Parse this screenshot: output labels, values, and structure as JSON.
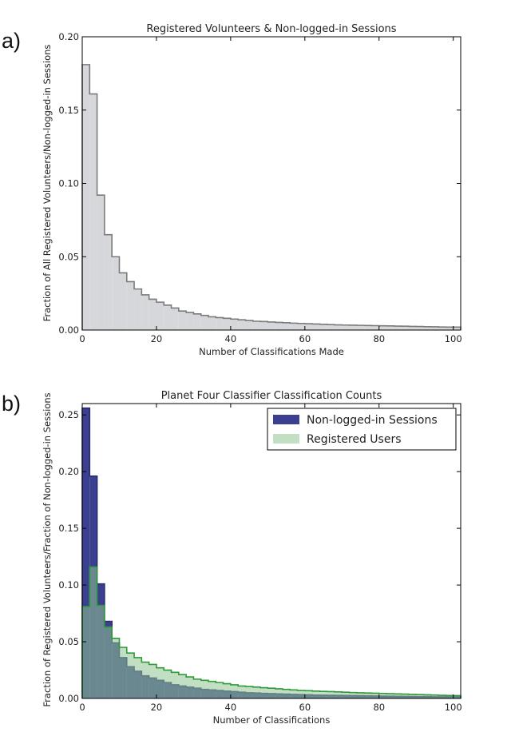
{
  "panels": {
    "a": {
      "letter": "a)"
    },
    "b": {
      "letter": "b)"
    }
  },
  "chart_data": [
    {
      "type": "histogram",
      "title": "Registered Volunteers & Non-logged-in Sessions",
      "xlabel": "Number of Classifications Made",
      "ylabel": "Fraction of All Registered Volunteers/Non-logged-in Sessions",
      "xlim": [
        0,
        102
      ],
      "ylim": [
        0,
        0.2
      ],
      "xticks": [
        0,
        20,
        40,
        60,
        80,
        100
      ],
      "xtick_labels": [
        "0",
        "20",
        "40",
        "60",
        "80",
        "100"
      ],
      "yticks": [
        0,
        0.05,
        0.1,
        0.15,
        0.2
      ],
      "ytick_labels": [
        "0.00",
        "0.05",
        "0.10",
        "0.15",
        "0.20"
      ],
      "bin_width": 2,
      "legend": "none",
      "grid": false,
      "series": [
        {
          "fill": "#d5d7da",
          "edge": "#7b7b7b",
          "values": [
            0.181,
            0.161,
            0.092,
            0.065,
            0.05,
            0.039,
            0.033,
            0.028,
            0.024,
            0.021,
            0.019,
            0.017,
            0.015,
            0.013,
            0.012,
            0.011,
            0.01,
            0.009,
            0.0085,
            0.008,
            0.0075,
            0.007,
            0.0065,
            0.006,
            0.0058,
            0.0055,
            0.0052,
            0.005,
            0.0047,
            0.0045,
            0.0043,
            0.0041,
            0.0039,
            0.0037,
            0.0035,
            0.0034,
            0.0033,
            0.0032,
            0.0031,
            0.003,
            0.0029,
            0.0028,
            0.0027,
            0.0026,
            0.0025,
            0.0024,
            0.0023,
            0.0022,
            0.0021,
            0.002,
            0.002
          ]
        }
      ]
    },
    {
      "type": "histogram",
      "title": "Planet Four Classifier Classification Counts",
      "xlabel": "Number of Classifications",
      "ylabel": "Fraction of Registered Volunteers/Fraction of Non-logged-in Sessions",
      "xlim": [
        0,
        102
      ],
      "ylim": [
        0,
        0.26
      ],
      "xticks": [
        0,
        20,
        40,
        60,
        80,
        100
      ],
      "xtick_labels": [
        "0",
        "20",
        "40",
        "60",
        "80",
        "100"
      ],
      "yticks": [
        0,
        0.05,
        0.1,
        0.15,
        0.2,
        0.25
      ],
      "ytick_labels": [
        "0.00",
        "0.05",
        "0.10",
        "0.15",
        "0.20",
        "0.25"
      ],
      "bin_width": 2,
      "legend": "top-right",
      "grid": false,
      "series": [
        {
          "name": "Non-logged-in Sessions",
          "fill": "#3b3f8f",
          "edge": "#2a2d70",
          "values": [
            0.256,
            0.196,
            0.101,
            0.068,
            0.049,
            0.036,
            0.028,
            0.024,
            0.02,
            0.018,
            0.016,
            0.014,
            0.012,
            0.011,
            0.01,
            0.009,
            0.008,
            0.0075,
            0.007,
            0.0065,
            0.006,
            0.0055,
            0.005,
            0.0048,
            0.0045,
            0.0043,
            0.004,
            0.0038,
            0.0036,
            0.0034,
            0.0032,
            0.003,
            0.0029,
            0.0028,
            0.0027,
            0.0026,
            0.0025,
            0.0024,
            0.0023,
            0.0022,
            0.0021,
            0.002,
            0.0019,
            0.0018,
            0.0017,
            0.0016,
            0.0016,
            0.0015,
            0.0015,
            0.0015,
            0.0015
          ]
        },
        {
          "name": "Registered Users",
          "fill": "rgba(145,196,145,0.55)",
          "edge": "#2e9a3c",
          "values": [
            0.081,
            0.116,
            0.082,
            0.063,
            0.053,
            0.045,
            0.04,
            0.036,
            0.032,
            0.03,
            0.027,
            0.025,
            0.023,
            0.021,
            0.019,
            0.017,
            0.016,
            0.015,
            0.014,
            0.013,
            0.012,
            0.011,
            0.0105,
            0.01,
            0.0095,
            0.009,
            0.0085,
            0.008,
            0.0075,
            0.007,
            0.0068,
            0.0065,
            0.0062,
            0.006,
            0.0058,
            0.0055,
            0.0052,
            0.005,
            0.0048,
            0.0046,
            0.0044,
            0.0042,
            0.004,
            0.0038,
            0.0036,
            0.0034,
            0.0032,
            0.003,
            0.0028,
            0.0026,
            0.0025
          ]
        }
      ]
    }
  ]
}
